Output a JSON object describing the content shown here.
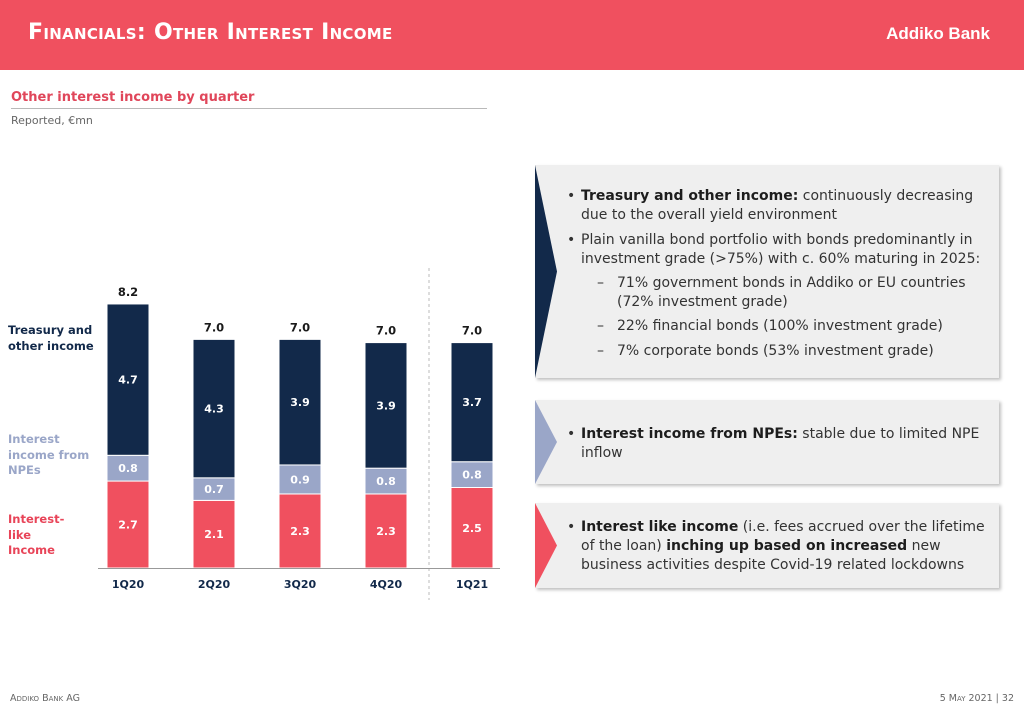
{
  "header": {
    "title": "Financials: Other Interest Income",
    "logo_text": "Addiko Bank"
  },
  "chart_data": {
    "type": "bar",
    "stacked": true,
    "title": "Other interest income by quarter",
    "subtitle": "Reported, €mn",
    "categories": [
      "1Q20",
      "2Q20",
      "3Q20",
      "4Q20",
      "1Q21"
    ],
    "totals": [
      "8.2",
      "7.0",
      "7.0",
      "7.0",
      "7.0"
    ],
    "series": [
      {
        "name": "Interest-like Income",
        "legend_lines": [
          "Interest-",
          "like",
          "Income"
        ],
        "color": "#f0505f",
        "values": [
          2.7,
          2.1,
          2.3,
          2.3,
          2.5
        ],
        "labels": [
          "2.7",
          "2.1",
          "2.3",
          "2.3",
          "2.5"
        ]
      },
      {
        "name": "Interest income from NPEs",
        "legend_lines": [
          "Interest",
          "income from",
          "NPEs"
        ],
        "color": "#9aa6c8",
        "values": [
          0.8,
          0.7,
          0.9,
          0.8,
          0.8
        ],
        "labels": [
          "0.8",
          "0.7",
          "0.9",
          "0.8",
          "0.8"
        ]
      },
      {
        "name": "Treasury and other income",
        "legend_lines": [
          "Treasury and",
          "other income"
        ],
        "color": "#12294a",
        "values": [
          4.7,
          4.3,
          3.9,
          3.9,
          3.7
        ],
        "labels": [
          "4.7",
          "4.3",
          "3.9",
          "3.9",
          "3.7"
        ]
      }
    ],
    "separator_before": "1Q21",
    "grid": false
  },
  "panels": {
    "treasury": {
      "bullet1_bold": "Treasury and other income:",
      "bullet1_text": " continuously decreasing due to the overall yield environment",
      "bullet2_text": "Plain vanilla bond portfolio with bonds predominantly in investment grade (>75%) with c. 60% maturing in 2025:",
      "sub1": "71% government bonds in Addiko or EU countries (72% investment grade)",
      "sub2": "22% financial bonds (100% investment grade)",
      "sub3": "7% corporate bonds (53% investment grade)"
    },
    "npe": {
      "bullet_bold": "Interest income from NPEs:",
      "bullet_text": " stable due to limited NPE inflow"
    },
    "like": {
      "bullet_bold1": "Interest like income",
      "bullet_text1": " (i.e. fees accrued over the lifetime of the loan) ",
      "bullet_bold2": "inching up based on increased",
      "bullet_text2": " new business activities despite Covid-19 related lockdowns"
    }
  },
  "footer": {
    "left": "Addiko Bank AG",
    "right": "5 May 2021 | 32"
  },
  "colors": {
    "brand_red": "#f0505f",
    "navy": "#12294a",
    "lavender": "#9aa6c8"
  }
}
